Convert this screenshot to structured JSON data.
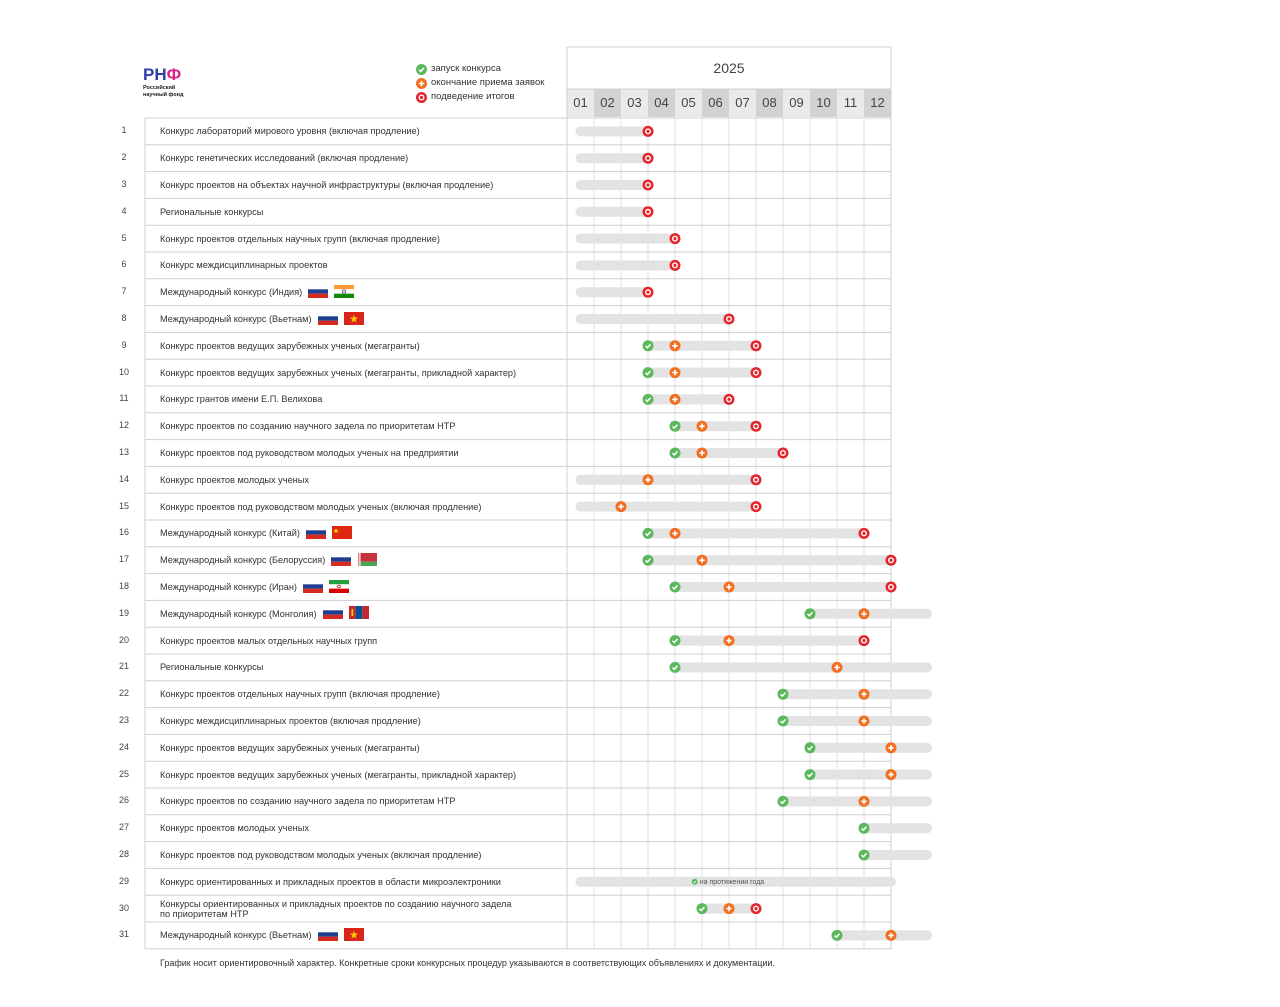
{
  "logo": {
    "mark_a": "РН",
    "mark_b": "Ф",
    "sub_line1": "Российский",
    "sub_line2": "научный фонд"
  },
  "legend": {
    "launch": "запуск конкурса",
    "deadline": "окончание приема заявок",
    "results": "подведение итогов"
  },
  "colors": {
    "launch": "#5cb85c",
    "deadline": "#f26f22",
    "results": "#e4252b",
    "bar": "#e3e3e3",
    "month_dark": "#d2d2d2",
    "month_light": "#eaeaea",
    "grid": "#cfcfcf"
  },
  "footnote": "График носит ориентировочный характер. Конкретные сроки конкурсных процедур указываются в соответствующих объявлениях и документации.",
  "chart_data": {
    "type": "table",
    "title": "2025",
    "months": [
      "01",
      "02",
      "03",
      "04",
      "05",
      "06",
      "07",
      "08",
      "09",
      "10",
      "11",
      "12"
    ],
    "rows": [
      {
        "num": "1",
        "label": "Конкурс лабораторий мирового уровня (включая продление)",
        "bar": [
          1,
          3.5
        ],
        "results": 3.5
      },
      {
        "num": "2",
        "label": "Конкурс генетических исследований (включая продление)",
        "bar": [
          1,
          3.5
        ],
        "results": 3.5
      },
      {
        "num": "3",
        "label": "Конкурс проектов на объектах научной инфраструктуры (включая продление)",
        "bar": [
          1,
          3.5
        ],
        "results": 3.5
      },
      {
        "num": "4",
        "label": "Региональные конкурсы",
        "bar": [
          1,
          3.5
        ],
        "results": 3.5
      },
      {
        "num": "5",
        "label": "Конкурс проектов отдельных научных групп (включая продление)",
        "bar": [
          1,
          4.5
        ],
        "results": 4.5
      },
      {
        "num": "6",
        "label": "Конкурс междисциплинарных проектов",
        "bar": [
          1,
          4.5
        ],
        "results": 4.5
      },
      {
        "num": "7",
        "label": "Международный конкурс (Индия)",
        "flags": [
          "ru",
          "in"
        ],
        "bar": [
          1,
          3.5
        ],
        "results": 3.5
      },
      {
        "num": "8",
        "label": "Международный конкурс (Вьетнам)",
        "flags": [
          "ru",
          "vn"
        ],
        "bar": [
          1,
          6.5
        ],
        "results": 6.5
      },
      {
        "num": "9",
        "label": "Конкурс проектов ведущих зарубежных ученых (мегагранты)",
        "bar": [
          3.5,
          7.5
        ],
        "launch": 3.5,
        "deadline": 4.5,
        "results": 7.5
      },
      {
        "num": "10",
        "label": "Конкурс проектов ведущих зарубежных ученых (мегагранты, прикладной характер)",
        "bar": [
          3.5,
          7.5
        ],
        "launch": 3.5,
        "deadline": 4.5,
        "results": 7.5
      },
      {
        "num": "11",
        "label": "Конкурс грантов имени Е.П. Велихова",
        "bar": [
          3.5,
          6.5
        ],
        "launch": 3.5,
        "deadline": 4.5,
        "results": 6.5
      },
      {
        "num": "12",
        "label": "Конкурс проектов по созданию научного задела по приоритетам НТР",
        "bar": [
          4.5,
          7.5
        ],
        "launch": 4.5,
        "deadline": 5.5,
        "results": 7.5
      },
      {
        "num": "13",
        "label": "Конкурс проектов под руководством молодых ученых на предприятии",
        "bar": [
          4.5,
          8.5
        ],
        "launch": 4.5,
        "deadline": 5.5,
        "results": 8.5
      },
      {
        "num": "14",
        "label": "Конкурс проектов молодых ученых",
        "bar": [
          1,
          7.5
        ],
        "deadline": 3.5,
        "results": 7.5
      },
      {
        "num": "15",
        "label": "Конкурс проектов под руководством молодых ученых (включая продление)",
        "bar": [
          1,
          7.5
        ],
        "deadline": 2.5,
        "results": 7.5
      },
      {
        "num": "16",
        "label": "Международный конкурс (Китай)",
        "flags": [
          "ru",
          "cn"
        ],
        "bar": [
          3.5,
          11.5
        ],
        "launch": 3.5,
        "deadline": 4.5,
        "results": 11.5
      },
      {
        "num": "17",
        "label": "Международный конкурс (Белоруссия)",
        "flags": [
          "ru",
          "by"
        ],
        "bar": [
          3.5,
          12.5
        ],
        "launch": 3.5,
        "deadline": 5.5,
        "results": 12.5
      },
      {
        "num": "18",
        "label": "Международный конкурс (Иран)",
        "flags": [
          "ru",
          "ir"
        ],
        "bar": [
          4.5,
          12.5
        ],
        "launch": 4.5,
        "deadline": 6.5,
        "results": 12.5
      },
      {
        "num": "19",
        "label": "Международный конкурс (Монголия)",
        "flags": [
          "ru",
          "mn"
        ],
        "bar": [
          9.5,
          14
        ],
        "launch": 9.5,
        "deadline": 11.5
      },
      {
        "num": "20",
        "label": "Конкурс проектов малых отдельных научных групп",
        "bar": [
          4.5,
          11.5
        ],
        "launch": 4.5,
        "deadline": 6.5,
        "results": 11.5
      },
      {
        "num": "21",
        "label": "Региональные конкурсы",
        "bar": [
          4.5,
          14
        ],
        "launch": 4.5,
        "deadline": 10.5
      },
      {
        "num": "22",
        "label": "Конкурс проектов отдельных научных групп (включая продление)",
        "bar": [
          8.5,
          14
        ],
        "launch": 8.5,
        "deadline": 11.5
      },
      {
        "num": "23",
        "label": "Конкурс междисциплинарных проектов (включая продление)",
        "bar": [
          8.5,
          14
        ],
        "launch": 8.5,
        "deadline": 11.5
      },
      {
        "num": "24",
        "label": "Конкурс проектов ведущих зарубежных ученых (мегагранты)",
        "bar": [
          9.5,
          14
        ],
        "launch": 9.5,
        "deadline": 12.5
      },
      {
        "num": "25",
        "label": "Конкурс проектов ведущих зарубежных ученых (мегагранты, прикладной характер)",
        "bar": [
          9.5,
          14
        ],
        "launch": 9.5,
        "deadline": 12.5
      },
      {
        "num": "26",
        "label": "Конкурс проектов по созданию научного задела по приоритетам НТР",
        "bar": [
          8.5,
          14
        ],
        "launch": 8.5,
        "deadline": 11.5
      },
      {
        "num": "27",
        "label": "Конкурс проектов молодых ученых",
        "bar": [
          11.5,
          14
        ],
        "launch": 11.5
      },
      {
        "num": "28",
        "label": "Конкурс проектов под руководством молодых ученых (включая продление)",
        "bar": [
          11.5,
          14
        ],
        "launch": 11.5
      },
      {
        "num": "29",
        "label": "Конкурс ориентированных и прикладных проектов в области микроэлектроники",
        "bar": [
          1,
          12.5
        ],
        "note": "на протяжении года"
      },
      {
        "num": "30",
        "label": "Конкурсы ориентированных и прикладных проектов по созданию научного задела",
        "label2": "по приоритетам НТР",
        "bar": [
          5.5,
          7.5
        ],
        "launch": 5.5,
        "deadline": 6.5,
        "results": 7.5
      },
      {
        "num": "31",
        "label": "Международный конкурс (Вьетнам)",
        "flags": [
          "ru",
          "vn"
        ],
        "bar": [
          10.5,
          14
        ],
        "launch": 10.5,
        "deadline": 12.5
      }
    ]
  }
}
